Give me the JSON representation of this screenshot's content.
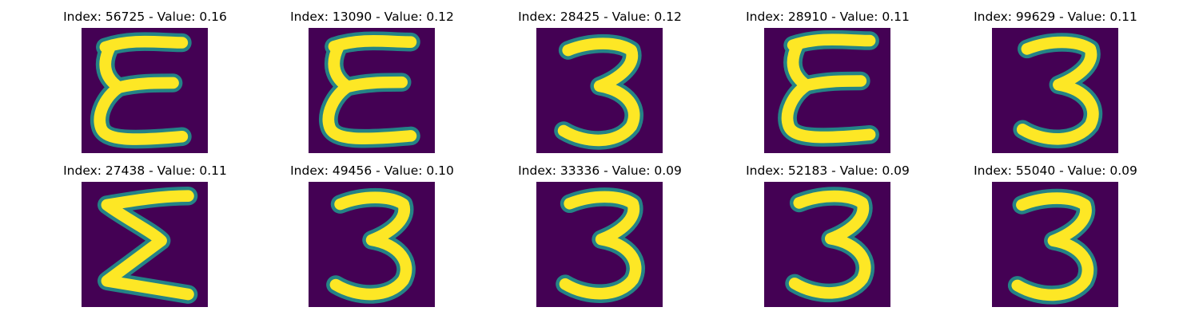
{
  "figure": {
    "panels": [
      {
        "title": "Index: 56725 - Value: 0.16",
        "glyph": "E",
        "index": 56725,
        "value": 0.16
      },
      {
        "title": "Index: 13090 - Value: 0.12",
        "glyph": "E",
        "index": 13090,
        "value": 0.12
      },
      {
        "title": "Index: 28425 - Value: 0.12",
        "glyph": "3",
        "index": 28425,
        "value": 0.12
      },
      {
        "title": "Index: 28910 - Value: 0.11",
        "glyph": "E",
        "index": 28910,
        "value": 0.11
      },
      {
        "title": "Index: 99629 - Value: 0.11",
        "glyph": "3",
        "index": 99629,
        "value": 0.11
      },
      {
        "title": "Index: 27438 - Value: 0.11",
        "glyph": "Σ",
        "index": 27438,
        "value": 0.11
      },
      {
        "title": "Index: 49456 - Value: 0.10",
        "glyph": "3",
        "index": 49456,
        "value": 0.1
      },
      {
        "title": "Index: 33336 - Value: 0.09",
        "glyph": "3",
        "index": 33336,
        "value": 0.09
      },
      {
        "title": "Index: 52183 - Value: 0.09",
        "glyph": "3",
        "index": 52183,
        "value": 0.09
      },
      {
        "title": "Index: 55040 - Value: 0.09",
        "glyph": "3",
        "index": 55040,
        "value": 0.09
      }
    ],
    "colors": {
      "background": "#440154",
      "stroke": "#fde725",
      "edge": "#21918c"
    }
  }
}
